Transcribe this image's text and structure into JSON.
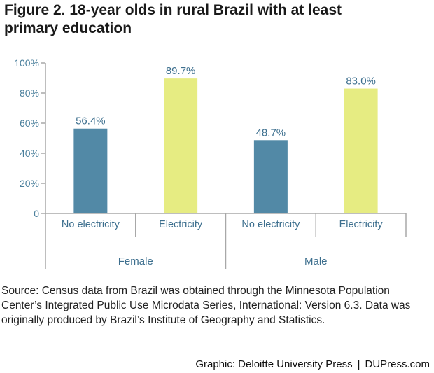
{
  "figure": {
    "title": "Figure 2. 18-year olds in rural Brazil with at least primary education",
    "source": "Source: Census data from Brazil was obtained through the Minnesota Population Center’s Integrated Public Use Microdata Series, International: Version 6.3. Data was originally produced by Brazil’s Institute of Geography and Statistics.",
    "credit_left": "Graphic: Deloitte University Press",
    "credit_sep": "|",
    "credit_right": "DUPress.com"
  },
  "chart_data": {
    "type": "bar",
    "title": "Figure 2. 18-year olds in rural Brazil with at least primary education",
    "xlabel": "",
    "ylabel": "",
    "ylim": [
      0,
      100
    ],
    "y_ticks": [
      "0",
      "20%",
      "40%",
      "60%",
      "80%",
      "100%"
    ],
    "y_tick_values": [
      0,
      20,
      40,
      60,
      80,
      100
    ],
    "grid": false,
    "legend": "none",
    "categories": [
      "No electricity",
      "Electricity",
      "No electricity",
      "Electricity"
    ],
    "groups": [
      {
        "label": "Female",
        "categories": [
          "No electricity",
          "Electricity"
        ]
      },
      {
        "label": "Male",
        "categories": [
          "No electricity",
          "Electricity"
        ]
      }
    ],
    "values": [
      56.4,
      89.7,
      48.7,
      83.0
    ],
    "value_labels": [
      "56.4%",
      "89.7%",
      "48.7%",
      "83.0%"
    ],
    "bar_colors": [
      "#5289a6",
      "#e6ec82",
      "#5289a6",
      "#e6ec82"
    ],
    "axis_color": "#a8a8a8",
    "tick_label_color": "#4a7f9c",
    "value_label_color": "#3d6f8e",
    "category_label_color": "#3d6f8e"
  }
}
